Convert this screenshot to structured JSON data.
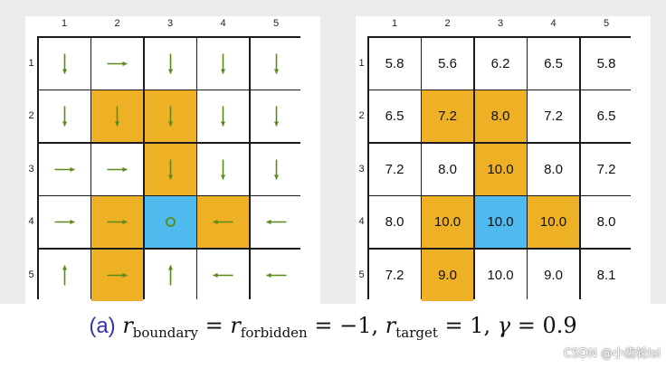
{
  "columns": [
    "1",
    "2",
    "3",
    "4",
    "5"
  ],
  "rows": [
    "1",
    "2",
    "3",
    "4",
    "5"
  ],
  "colors": {
    "forbidden": "#eeb024",
    "target": "#4fbaee",
    "arrow": "#5a8a1a",
    "caption_label": "#3535a8"
  },
  "cell_types": [
    [
      "normal",
      "normal",
      "normal",
      "normal",
      "normal"
    ],
    [
      "normal",
      "forbidden",
      "forbidden",
      "normal",
      "normal"
    ],
    [
      "normal",
      "normal",
      "forbidden",
      "normal",
      "normal"
    ],
    [
      "normal",
      "forbidden",
      "target",
      "forbidden",
      "normal"
    ],
    [
      "normal",
      "forbidden",
      "normal",
      "normal",
      "normal"
    ]
  ],
  "policy": [
    [
      "down",
      "right",
      "down",
      "down",
      "down"
    ],
    [
      "down",
      "down",
      "down",
      "down",
      "down"
    ],
    [
      "right",
      "right",
      "down",
      "down",
      "down"
    ],
    [
      "right",
      "right",
      "stay",
      "left",
      "left"
    ],
    [
      "up",
      "right",
      "up",
      "left",
      "left"
    ]
  ],
  "values": [
    [
      "5.8",
      "5.6",
      "6.2",
      "6.5",
      "5.8"
    ],
    [
      "6.5",
      "7.2",
      "8.0",
      "7.2",
      "6.5"
    ],
    [
      "7.2",
      "8.0",
      "10.0",
      "8.0",
      "7.2"
    ],
    [
      "8.0",
      "10.0",
      "10.0",
      "10.0",
      "8.0"
    ],
    [
      "7.2",
      "9.0",
      "10.0",
      "9.0",
      "8.1"
    ]
  ],
  "caption": {
    "label": "(a)",
    "r": "r",
    "boundary_sub": "boundary",
    "eq1": " = ",
    "forbidden_sub": "forbidden",
    "eq2": " = −1, ",
    "target_sub": "target",
    "eq3": " = 1, ",
    "gamma": "γ",
    "eq4": " = 0.9"
  },
  "watermark": "CSDN @小齿轮lsl"
}
